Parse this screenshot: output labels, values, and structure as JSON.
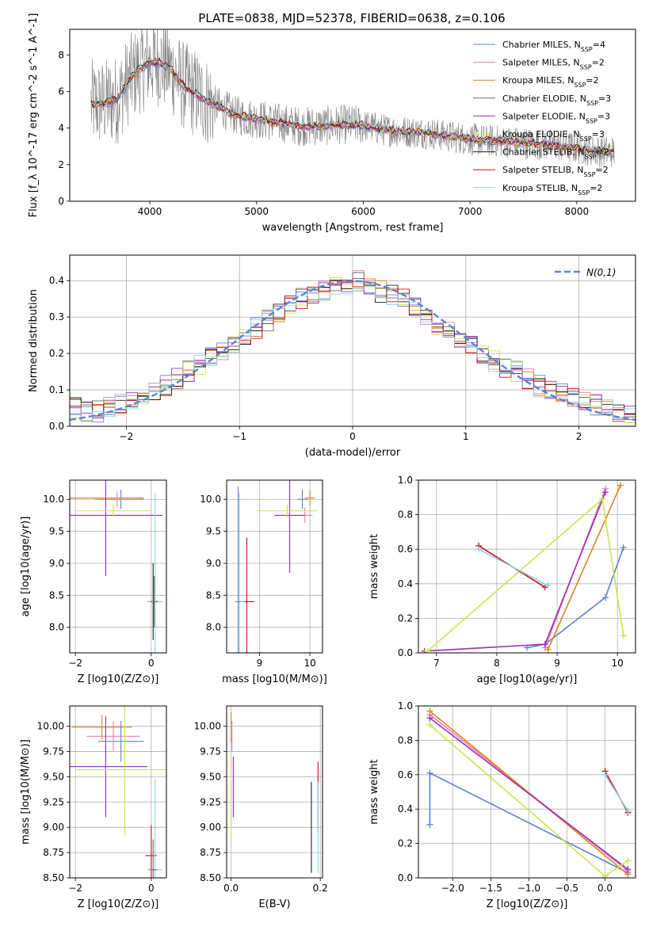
{
  "figure": {
    "title": "PLATE=0838, MJD=52378, FIBERID=0638, z=0.106"
  },
  "series_styles": [
    {
      "name": "Chabrier MILES",
      "nssp": "4",
      "color": "#5b83d6"
    },
    {
      "name": "Salpeter MILES",
      "nssp": "2",
      "color": "#ee7fb0"
    },
    {
      "name": "Kroupa MILES",
      "nssp": "2",
      "color": "#d9851f"
    },
    {
      "name": "Chabrier ELODIE",
      "nssp": "3",
      "color": "#6b6b6b"
    },
    {
      "name": "Salpeter ELODIE",
      "nssp": "3",
      "color": "#9b30b8"
    },
    {
      "name": "Kroupa ELODIE",
      "nssp": "3",
      "color": "#c8e64a"
    },
    {
      "name": "Chabrier STELIB",
      "nssp": "2",
      "color": "#222222"
    },
    {
      "name": "Salpeter STELIB",
      "nssp": "2",
      "color": "#c1121c"
    },
    {
      "name": "Kroupa STELIB",
      "nssp": "2",
      "color": "#8fd3e0"
    }
  ],
  "chart_data": [
    {
      "id": "spectrum",
      "type": "line",
      "xlabel": "wavelength [Angstrom, rest frame]",
      "ylabel": "Flux [f_λ 10^-17 erg cm^-2 s^-1 A^-1]",
      "xlim": [
        3250,
        8550
      ],
      "ylim": [
        0,
        9.4
      ],
      "xticks": [
        4000,
        5000,
        6000,
        7000,
        8000
      ],
      "yticks": [
        0,
        2,
        4,
        6,
        8
      ],
      "grid": false,
      "legend": "top-right",
      "data_color": "#808080",
      "model_x": [
        3500,
        3600,
        3700,
        3800,
        3900,
        4000,
        4100,
        4200,
        4300,
        4400,
        4500,
        4600,
        4800,
        5000,
        5200,
        5400,
        5600,
        5800,
        6000,
        6200,
        6400,
        6600,
        6800,
        7000,
        7200,
        7400,
        7600,
        7800,
        8000,
        8200,
        8350
      ],
      "model_y": [
        5.3,
        5.4,
        5.6,
        6.6,
        7.2,
        7.6,
        7.6,
        7.2,
        6.4,
        6.0,
        5.6,
        5.3,
        4.7,
        4.5,
        4.3,
        4.1,
        4.1,
        4.2,
        4.15,
        3.9,
        3.8,
        3.75,
        3.55,
        3.4,
        3.3,
        3.25,
        3.15,
        3.05,
        2.9,
        2.75,
        2.7
      ]
    },
    {
      "id": "residuals",
      "type": "line",
      "xlabel": "(data-model)/error",
      "ylabel": "Normed distribution",
      "xlim": [
        -2.5,
        2.5
      ],
      "ylim": [
        0,
        0.47
      ],
      "xticks": [
        -2,
        -1,
        0,
        1,
        2
      ],
      "yticks": [
        0.0,
        0.1,
        0.2,
        0.3,
        0.4
      ],
      "grid": true,
      "legend": "top-right",
      "legend_label": "N(0,1)",
      "histogram": {
        "bin_edges_from": -2.5,
        "bin_width": 0.1,
        "values": [
          0.05,
          0.04,
          0.04,
          0.05,
          0.06,
          0.07,
          0.08,
          0.1,
          0.11,
          0.13,
          0.15,
          0.17,
          0.19,
          0.21,
          0.22,
          0.24,
          0.27,
          0.29,
          0.31,
          0.33,
          0.35,
          0.36,
          0.37,
          0.38,
          0.39,
          0.4,
          0.38,
          0.37,
          0.36,
          0.35,
          0.33,
          0.3,
          0.28,
          0.26,
          0.24,
          0.22,
          0.2,
          0.18,
          0.16,
          0.15,
          0.13,
          0.11,
          0.1,
          0.09,
          0.08,
          0.07,
          0.06,
          0.05,
          0.04,
          0.03
        ]
      }
    },
    {
      "id": "age-vs-Z",
      "type": "scatter",
      "xlabel": "Z [log10(Z/Z⊙)]",
      "ylabel": "age [log10(age/yr)]",
      "xlim": [
        -2.15,
        0.4
      ],
      "ylim": [
        7.6,
        10.3
      ],
      "xticks": [
        -2,
        0
      ],
      "yticks": [
        8.0,
        8.5,
        9.0,
        9.5,
        10.0
      ],
      "grid": true,
      "points": [
        {
          "s": 0,
          "x": -0.8,
          "y": 10.0,
          "xerr": 0.6,
          "yerr": 0.15
        },
        {
          "s": 1,
          "x": -0.9,
          "y": 10.0,
          "xerr": 0.6,
          "yerr": 0.12
        },
        {
          "s": 2,
          "x": -1.2,
          "y": 10.02,
          "xerr": 1.0,
          "yerr": 0.1
        },
        {
          "s": 4,
          "x": -1.2,
          "y": 9.75,
          "xerr": 1.5,
          "yerr": 0.95
        },
        {
          "s": 5,
          "x": -1.0,
          "y": 9.82,
          "xerr": 1.0,
          "yerr": 0.1
        },
        {
          "s": 6,
          "x": 0.05,
          "y": 8.4,
          "xerr": 0.15,
          "yerr": 0.6
        },
        {
          "s": 8,
          "x": 0.1,
          "y": 8.4,
          "xerr": 0.2,
          "yerr": 1.7
        },
        {
          "s": 3,
          "x": 0.08,
          "y": 8.4,
          "xerr": 0.1,
          "yerr": 0.4
        }
      ]
    },
    {
      "id": "age-vs-mass",
      "type": "scatter",
      "xlabel": "mass [log10(M/M⊙)]",
      "ylabel": "",
      "xlim": [
        8.35,
        10.25
      ],
      "ylim": [
        7.6,
        10.3
      ],
      "xticks": [
        9,
        10
      ],
      "yticks": [
        8.0,
        8.5,
        9.0,
        9.5,
        10.0
      ],
      "grid": true,
      "points": [
        {
          "s": 0,
          "x": 9.85,
          "y": 10.0,
          "xerr": 0.1,
          "yerr": 0.15
        },
        {
          "s": 1,
          "x": 9.9,
          "y": 9.75,
          "xerr": 0.15,
          "yerr": 0.12
        },
        {
          "s": 2,
          "x": 10.0,
          "y": 10.02,
          "xerr": 0.1,
          "yerr": 0.12
        },
        {
          "s": 4,
          "x": 9.6,
          "y": 9.75,
          "xerr": 0.3,
          "yerr": 0.9
        },
        {
          "s": 5,
          "x": 9.55,
          "y": 9.82,
          "xerr": 0.6,
          "yerr": 0.1
        },
        {
          "s": 7,
          "x": 8.75,
          "y": 8.4,
          "xerr": 0.15,
          "yerr": 1.0
        },
        {
          "s": 8,
          "x": 8.6,
          "y": 8.4,
          "xerr": 0.1,
          "yerr": 1.7
        },
        {
          "s": 0,
          "x": 8.58,
          "y": 8.4,
          "xerr": 0.05,
          "yerr": 1.8
        }
      ]
    },
    {
      "id": "massweight-vs-age",
      "type": "line",
      "xlabel": "age [log10(age/yr)]",
      "ylabel": "mass weight",
      "xlim": [
        6.7,
        10.3
      ],
      "ylim": [
        0,
        1
      ],
      "xticks": [
        7,
        8,
        9,
        10
      ],
      "yticks": [
        0.0,
        0.2,
        0.4,
        0.6,
        0.8,
        1.0
      ],
      "grid": true,
      "lines": [
        {
          "s": 0,
          "x": [
            8.5,
            8.8,
            9.8,
            10.1
          ],
          "y": [
            0.03,
            0.05,
            0.32,
            0.61
          ]
        },
        {
          "s": 1,
          "x": [
            8.8,
            9.8
          ],
          "y": [
            0.03,
            0.95
          ]
        },
        {
          "s": 2,
          "x": [
            8.85,
            10.05
          ],
          "y": [
            0.02,
            0.97
          ]
        },
        {
          "s": 4,
          "x": [
            6.8,
            8.8,
            9.8
          ],
          "y": [
            0.01,
            0.05,
            0.93
          ]
        },
        {
          "s": 5,
          "x": [
            6.85,
            9.75,
            10.1
          ],
          "y": [
            0.01,
            0.89,
            0.1
          ]
        },
        {
          "s": 7,
          "x": [
            7.7,
            8.8
          ],
          "y": [
            0.62,
            0.38
          ]
        },
        {
          "s": 8,
          "x": [
            7.7,
            8.85
          ],
          "y": [
            0.6,
            0.39
          ]
        }
      ]
    },
    {
      "id": "mass-vs-Z",
      "type": "scatter",
      "xlabel": "Z [log10(Z/Z⊙)]",
      "ylabel": "mass [log10(M/M⊙)]",
      "xlim": [
        -2.15,
        0.4
      ],
      "ylim": [
        8.5,
        10.2
      ],
      "xticks": [
        -2,
        0
      ],
      "yticks": [
        8.5,
        8.75,
        9.0,
        9.25,
        9.5,
        9.75,
        10.0
      ],
      "grid": true,
      "points": [
        {
          "s": 0,
          "x": -0.8,
          "y": 9.85,
          "xerr": 0.6,
          "yerr": 0.2
        },
        {
          "s": 1,
          "x": -1.0,
          "y": 9.9,
          "xerr": 0.7,
          "yerr": 0.15
        },
        {
          "s": 2,
          "x": -1.3,
          "y": 9.99,
          "xerr": 0.8,
          "yerr": 0.12
        },
        {
          "s": 4,
          "x": -1.2,
          "y": 9.6,
          "xerr": 1.1,
          "yerr": 0.5
        },
        {
          "s": 5,
          "x": -0.7,
          "y": 9.57,
          "xerr": 1.3,
          "yerr": 0.65
        },
        {
          "s": 7,
          "x": 0.0,
          "y": 8.72,
          "xerr": 0.15,
          "yerr": 0.3
        },
        {
          "s": 8,
          "x": 0.1,
          "y": 8.58,
          "xerr": 0.2,
          "yerr": 0.9
        },
        {
          "s": 3,
          "x": 0.05,
          "y": 8.58,
          "xerr": 0.1,
          "yerr": 0.3
        }
      ]
    },
    {
      "id": "mass-vs-ebv",
      "type": "scatter",
      "xlabel": "E(B-V)",
      "ylabel": "",
      "xlim": [
        -0.01,
        0.205
      ],
      "ylim": [
        8.5,
        10.2
      ],
      "xticks": [
        0.0,
        0.2
      ],
      "yticks": [
        8.5,
        8.75,
        9.0,
        9.25,
        9.5,
        9.75,
        10.0
      ],
      "grid": true,
      "points": [
        {
          "s": 2,
          "x": 0.0,
          "y": 9.99,
          "xerr": 0.0,
          "yerr": 0.15
        },
        {
          "s": 1,
          "x": 0.002,
          "y": 9.9,
          "xerr": 0.0,
          "yerr": 0.15
        },
        {
          "s": 5,
          "x": 0.0,
          "y": 9.3,
          "xerr": 0.0,
          "yerr": 0.4
        },
        {
          "s": 4,
          "x": 0.005,
          "y": 9.4,
          "xerr": 0.0,
          "yerr": 0.3
        },
        {
          "s": 6,
          "x": 0.18,
          "y": 9.0,
          "xerr": 0.0,
          "yerr": 0.45
        },
        {
          "s": 7,
          "x": 0.195,
          "y": 9.3,
          "xerr": 0.0,
          "yerr": 0.35
        },
        {
          "s": 8,
          "x": 0.195,
          "y": 9.0,
          "xerr": 0.0,
          "yerr": 0.45
        }
      ]
    },
    {
      "id": "massweight-vs-Z",
      "type": "line",
      "xlabel": "Z [log10(Z/Z⊙)]",
      "ylabel": "mass weight",
      "xlim": [
        -2.45,
        0.4
      ],
      "ylim": [
        0,
        1
      ],
      "xticks": [
        -2.0,
        -1.5,
        -1.0,
        -0.5,
        0.0
      ],
      "yticks": [
        0.0,
        0.2,
        0.4,
        0.6,
        0.8,
        1.0
      ],
      "grid": true,
      "lines": [
        {
          "s": 0,
          "x": [
            -2.3,
            -2.3,
            0.3
          ],
          "y": [
            0.31,
            0.61,
            0.03
          ]
        },
        {
          "s": 1,
          "x": [
            -2.3,
            0.3
          ],
          "y": [
            0.95,
            0.04
          ]
        },
        {
          "s": 2,
          "x": [
            -2.3,
            0.3
          ],
          "y": [
            0.97,
            0.02
          ]
        },
        {
          "s": 4,
          "x": [
            -2.3,
            0.3
          ],
          "y": [
            0.93,
            0.05
          ]
        },
        {
          "s": 5,
          "x": [
            -2.3,
            0.0,
            0.3
          ],
          "y": [
            0.89,
            0.01,
            0.1
          ]
        },
        {
          "s": 7,
          "x": [
            0.0,
            0.3
          ],
          "y": [
            0.62,
            0.38
          ]
        },
        {
          "s": 8,
          "x": [
            0.0,
            0.3
          ],
          "y": [
            0.6,
            0.39
          ]
        }
      ]
    }
  ]
}
